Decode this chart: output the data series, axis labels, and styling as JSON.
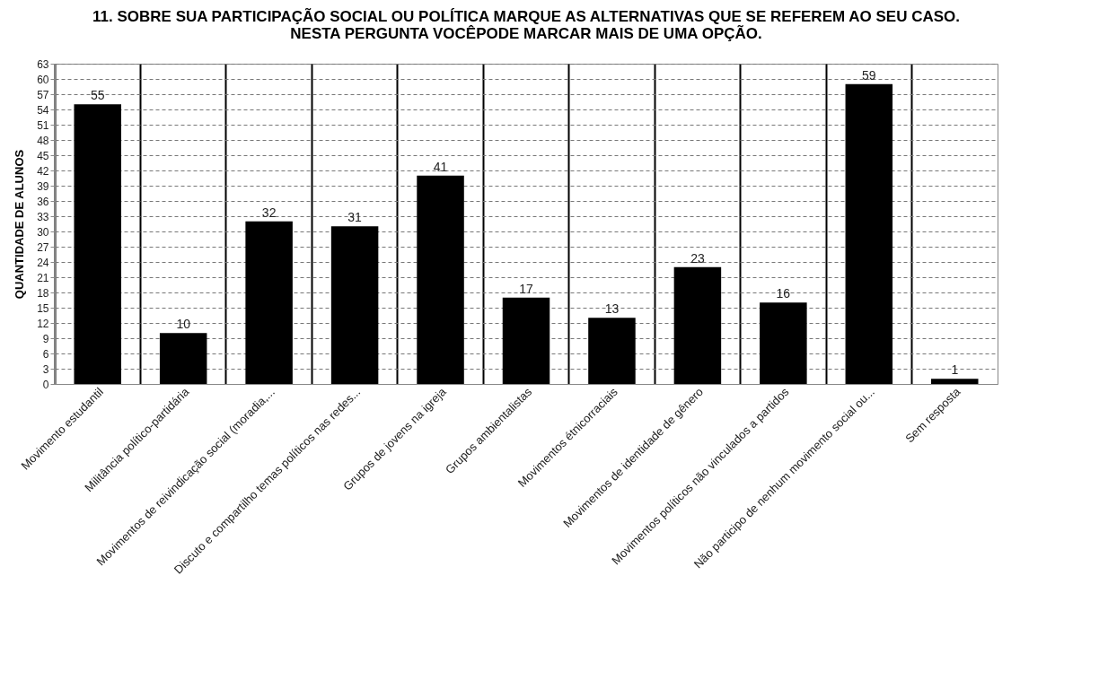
{
  "chart_data": {
    "type": "bar",
    "title": "11. SOBRE SUA PARTICIPAÇÃO SOCIAL OU POLÍTICA MARQUE AS ALTERNATIVAS QUE SE REFEREM AO SEU CASO. NESTA PERGUNTA VOCÊPODE MARCAR MAIS DE UMA OPÇÃO.",
    "ylabel": "QUANTIDADE DE ALUNOS",
    "categories": [
      "Movimento estudantil",
      "Militância político-partidária",
      "Movimentos de reivindicação social (moradia,...",
      "Discuto e compartilho temas políticos nas redes...",
      "Grupos de jovens na igreja",
      "Grupos ambientalistas",
      "Movimentos étnicorraciais",
      "Movimentos de identidade de gênero",
      "Movimentos políticos não vinculados a partidos",
      "Não participo de nenhum movimento social ou...",
      "Sem resposta"
    ],
    "values": [
      55,
      10,
      32,
      31,
      41,
      17,
      13,
      23,
      16,
      59,
      1
    ],
    "color": "#000000",
    "ylim": [
      0,
      63
    ],
    "yticks": [
      0,
      3,
      6,
      9,
      12,
      15,
      18,
      21,
      24,
      27,
      30,
      33,
      36,
      39,
      42,
      45,
      48,
      51,
      54,
      57,
      60,
      63
    ],
    "grid": true,
    "data_labels": true
  }
}
